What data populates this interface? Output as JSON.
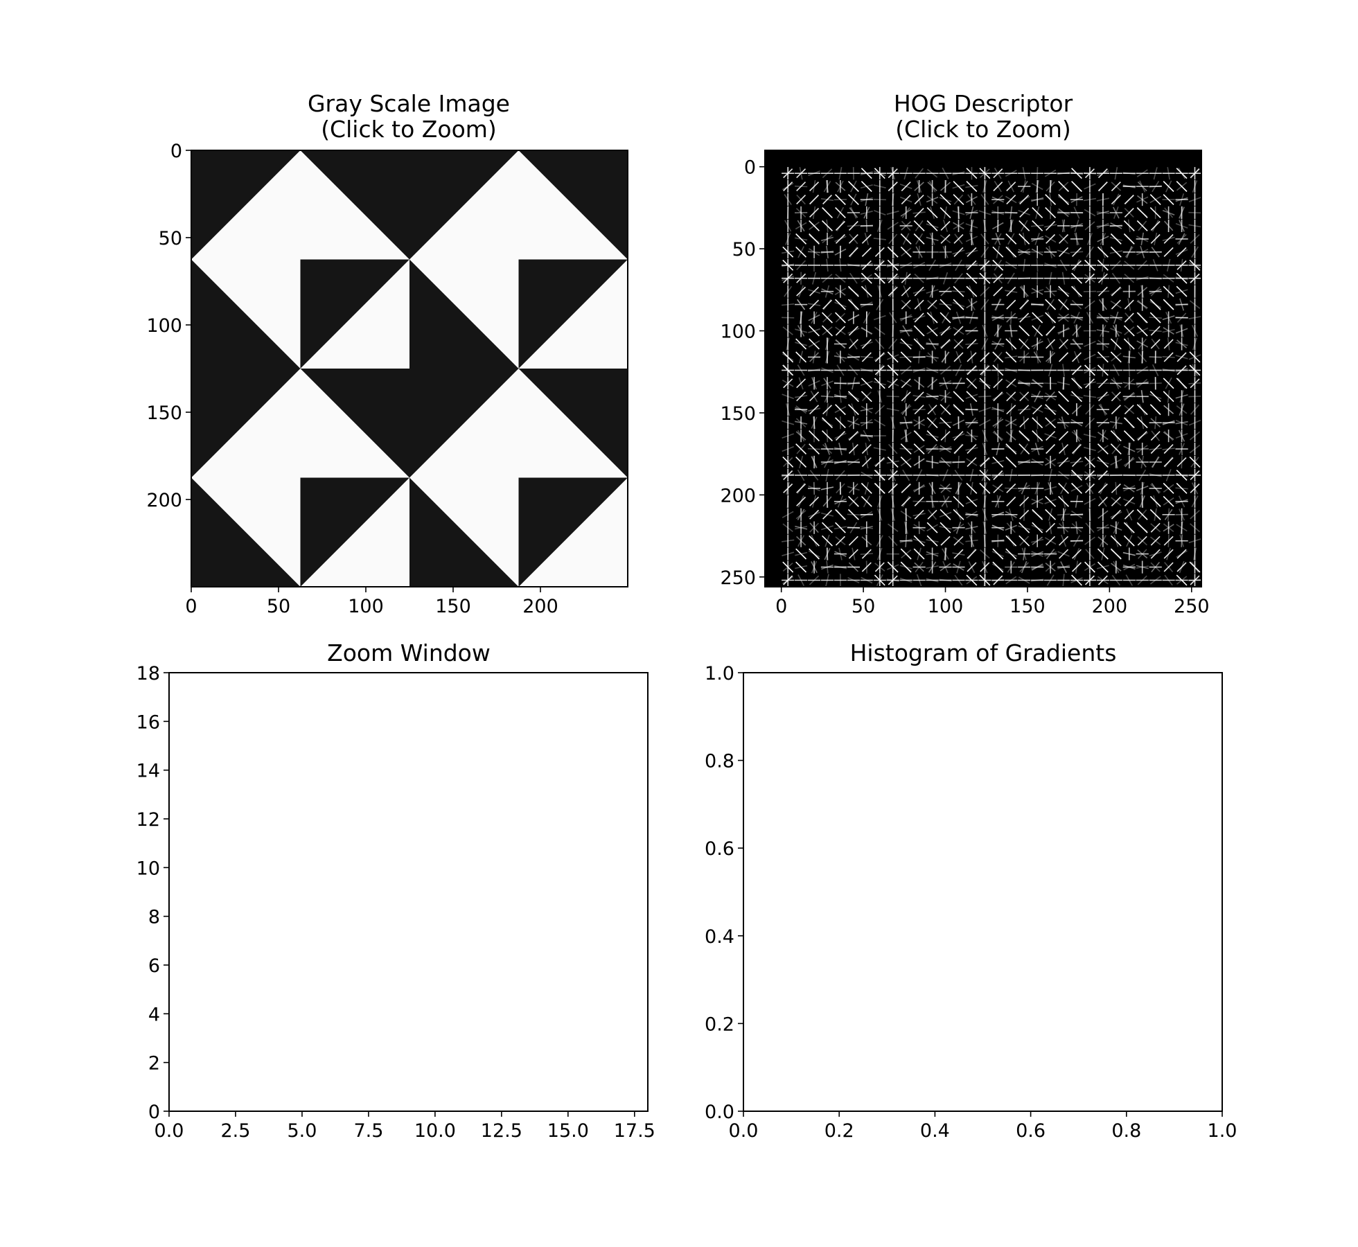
{
  "figure": {
    "background": "#ffffff",
    "panels": [
      "Gray Scale Image",
      "HOG Descriptor",
      "Zoom Window",
      "Histogram of Gradients"
    ]
  },
  "chart_data": [
    {
      "type": "image",
      "title": "Gray Scale Image",
      "subtitle": "(Click to Zoom)",
      "xlim": [
        0,
        250
      ],
      "ylim": [
        250,
        0
      ],
      "xticks": [
        "0",
        "50",
        "100",
        "150",
        "200"
      ],
      "yticks": [
        "0",
        "50",
        "100",
        "150",
        "200"
      ],
      "content": "black and white triangle tile pattern, 4 x 4 squares of 62.5 px, each split by a diagonal",
      "colors": {
        "dark": "#151515",
        "light": "#fafafa"
      },
      "tiles": [
        [
          "anti-dark-bottom",
          "main-dark-bottom",
          "anti-dark-bottom",
          "main-dark-bottom"
        ],
        [
          "main-dark-top",
          "anti-dark-bottom",
          "main-dark-top",
          "anti-dark-bottom"
        ],
        [
          "anti-dark-bottom",
          "main-dark-bottom",
          "anti-dark-bottom",
          "main-dark-bottom"
        ],
        [
          "main-dark-top",
          "anti-dark-bottom",
          "main-dark-top",
          "anti-dark-bottom"
        ]
      ]
    },
    {
      "type": "image",
      "title": "HOG Descriptor",
      "subtitle": "(Click to Zoom)",
      "xlim": [
        -10,
        256
      ],
      "ylim": [
        256,
        -10
      ],
      "xticks": [
        "0",
        "50",
        "100",
        "150",
        "200",
        "250"
      ],
      "yticks": [
        "0",
        "50",
        "100",
        "150",
        "200",
        "250"
      ],
      "content": "HOG visualization: grid of 8x8-pixel cells with white gradient-orientation glyphs on black",
      "colors": {
        "background": "#000000",
        "glyph": "#ffffff"
      },
      "cell_size": 8,
      "cells_per_side": 32
    },
    {
      "type": "empty",
      "title": "Zoom Window",
      "xlim": [
        0,
        18
      ],
      "ylim": [
        0,
        18
      ],
      "xticks": [
        "0.0",
        "2.5",
        "5.0",
        "7.5",
        "10.0",
        "12.5",
        "15.0",
        "17.5"
      ],
      "yticks": [
        "0",
        "2",
        "4",
        "6",
        "8",
        "10",
        "12",
        "14",
        "16",
        "18"
      ]
    },
    {
      "type": "empty",
      "title": "Histogram of Gradients",
      "xlim": [
        0,
        1
      ],
      "ylim": [
        0,
        1
      ],
      "xticks": [
        "0.0",
        "0.2",
        "0.4",
        "0.6",
        "0.8",
        "1.0"
      ],
      "yticks": [
        "0.0",
        "0.2",
        "0.4",
        "0.6",
        "0.8",
        "1.0"
      ]
    }
  ]
}
